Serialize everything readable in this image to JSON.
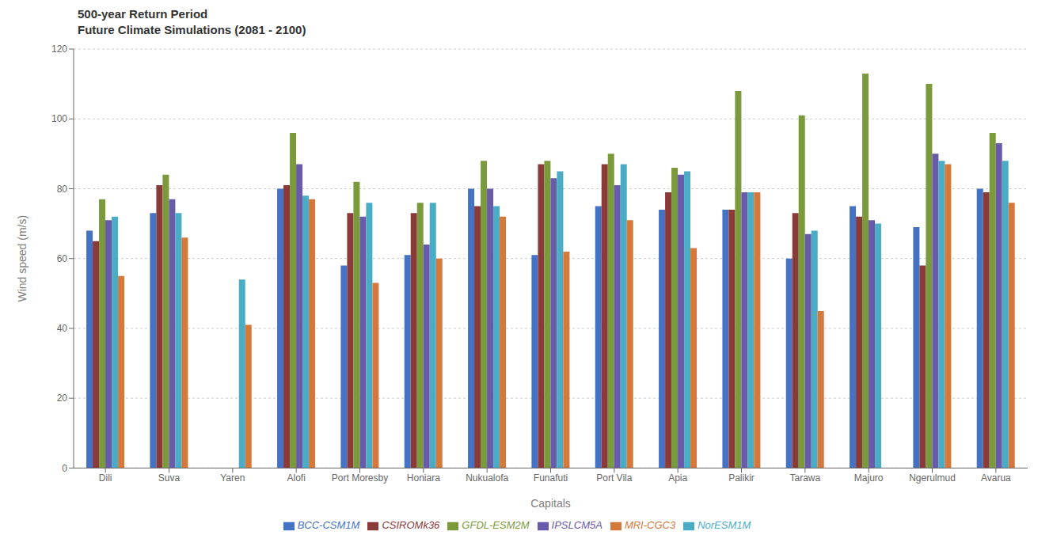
{
  "chart_data": {
    "type": "bar",
    "title": "500-year Return Period\nFuture Climate Simulations (2081 - 2100)",
    "xlabel": "Capitals",
    "ylabel": "Wind speed (m/s)",
    "ylim": [
      0,
      120
    ],
    "yticks": [
      0,
      20,
      40,
      60,
      80,
      100,
      120
    ],
    "grid": true,
    "legend": "bottom",
    "categories": [
      "Dili",
      "Suva",
      "Yaren",
      "Alofi",
      "Port Moresby",
      "Honiara",
      "Nukualofa",
      "Funafuti",
      "Port Vila",
      "Apia",
      "Palikir",
      "Tarawa",
      "Majuro",
      "Ngerulmud",
      "Avarua"
    ],
    "series": [
      {
        "name": "BCC-CSM1M",
        "color": "#4472c4",
        "values": [
          68,
          73,
          0,
          80,
          58,
          61,
          80,
          61,
          75,
          74,
          74,
          60,
          75,
          69,
          80
        ]
      },
      {
        "name": "CSIROMk36",
        "color": "#8b3a3a",
        "values": [
          65,
          81,
          0,
          81,
          73,
          73,
          75,
          87,
          87,
          79,
          74,
          73,
          72,
          58,
          79
        ]
      },
      {
        "name": "GFDL-ESM2M",
        "color": "#7a9a3c",
        "values": [
          77,
          84,
          0,
          96,
          82,
          76,
          88,
          88,
          90,
          86,
          108,
          101,
          113,
          110,
          96
        ]
      },
      {
        "name": "IPSLCM5A",
        "color": "#6a5aaa",
        "values": [
          71,
          77,
          0,
          87,
          72,
          64,
          80,
          83,
          81,
          84,
          79,
          67,
          71,
          90,
          93
        ]
      },
      {
        "name": "NorESM1M",
        "color": "#4bacc6",
        "values": [
          72,
          73,
          54,
          78,
          76,
          76,
          75,
          85,
          87,
          85,
          79,
          68,
          70,
          88,
          88
        ]
      },
      {
        "name": "MRI-CGC3",
        "color": "#d4793b",
        "values": [
          55,
          66,
          41,
          77,
          53,
          60,
          72,
          62,
          71,
          63,
          79,
          45,
          0,
          87,
          76
        ]
      }
    ]
  }
}
